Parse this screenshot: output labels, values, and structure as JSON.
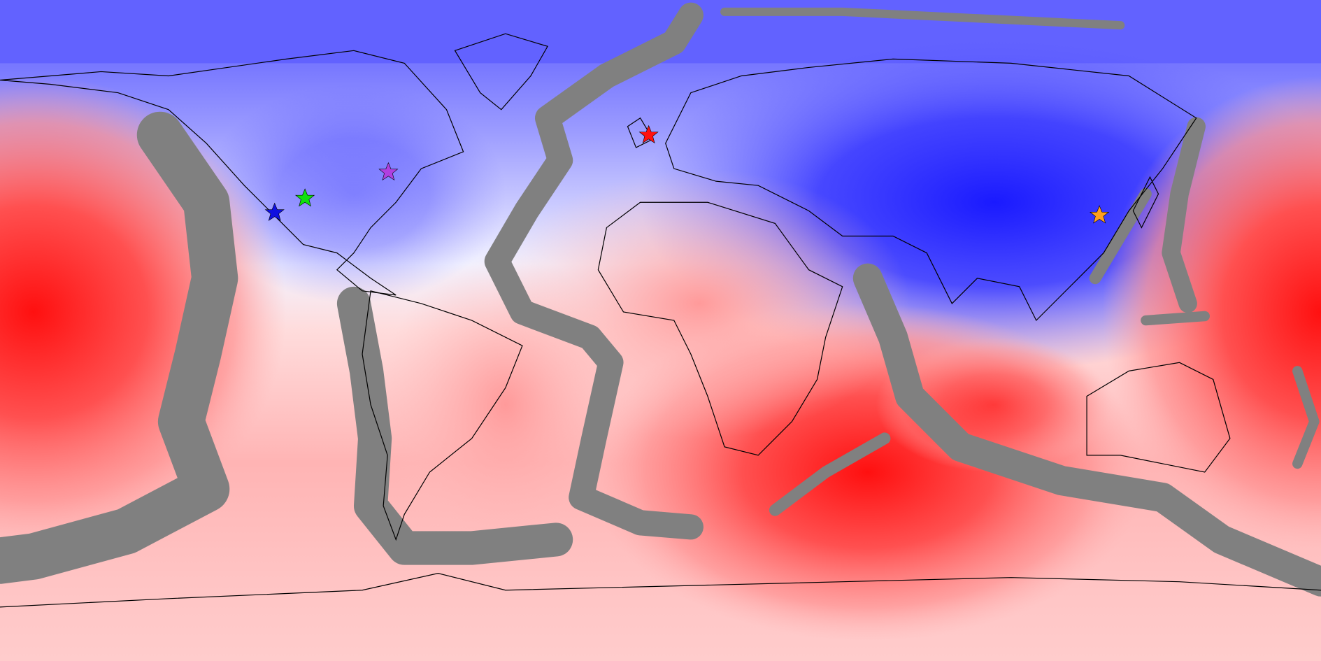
{
  "map": {
    "markers": [
      {
        "color": "#1010e0"
      },
      {
        "color": "#10e010"
      },
      {
        "color": "#b040e0"
      },
      {
        "color": "#ff1010"
      },
      {
        "color": "#ffa020"
      }
    ]
  }
}
